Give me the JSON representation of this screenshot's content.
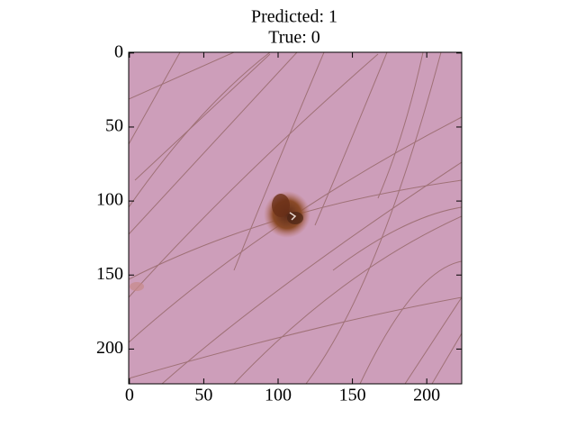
{
  "chart_data": {
    "type": "image",
    "title": [
      "Predicted: 1",
      "True: 0"
    ],
    "xlim": [
      -0.5,
      223.5
    ],
    "ylim": [
      223.5,
      -0.5
    ],
    "xticks": [
      0,
      50,
      100,
      150,
      200
    ],
    "yticks": [
      0,
      50,
      100,
      150,
      200
    ]
  }
}
